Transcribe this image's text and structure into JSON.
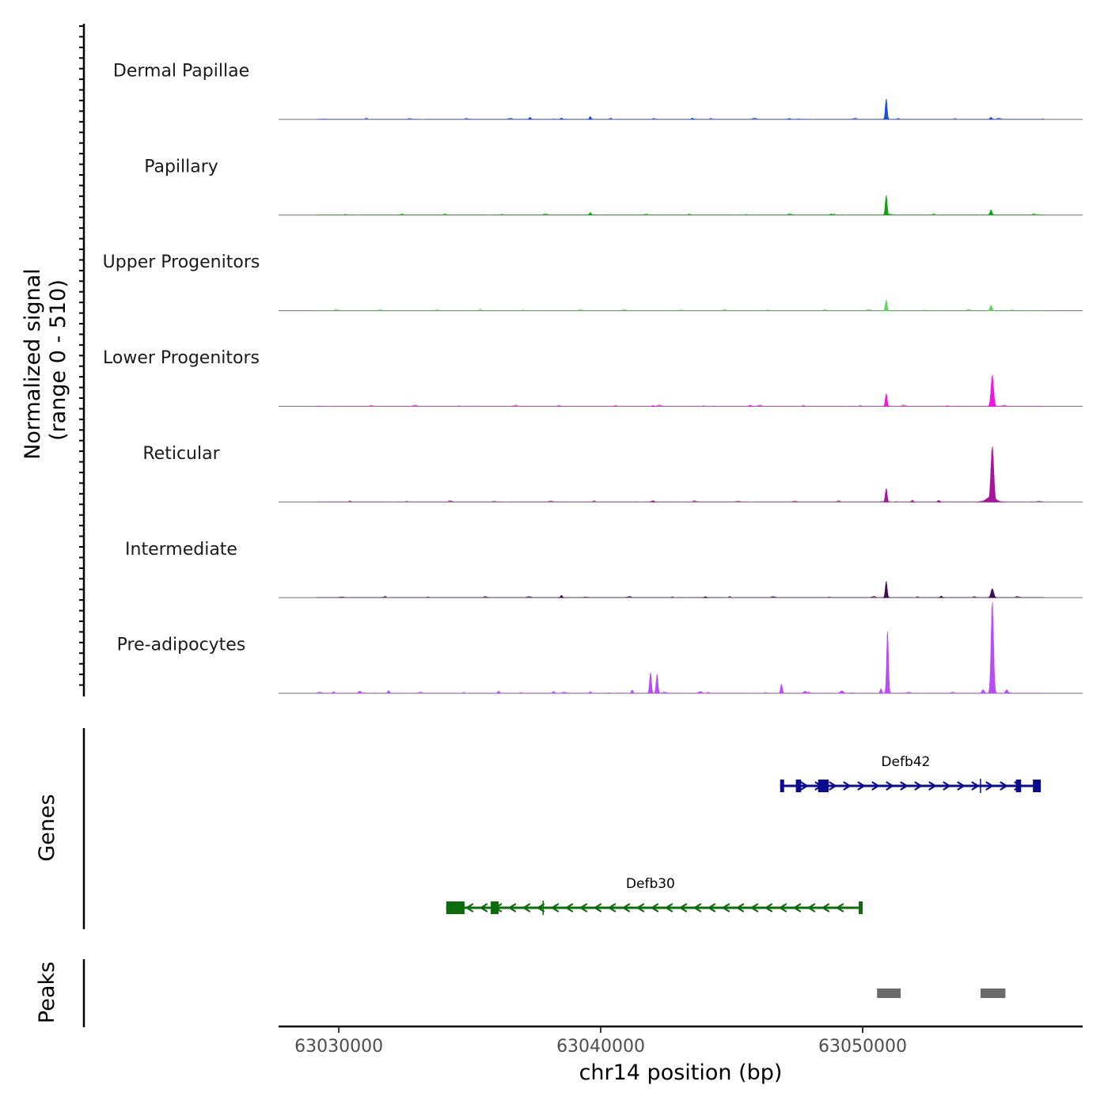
{
  "chart_data": {
    "type": "area",
    "chromosome": "chr14",
    "xlabel": "chr14 position (bp)",
    "xlim": [
      63027700,
      63058400
    ],
    "x_ticks": [
      63030000,
      63040000,
      63050000
    ],
    "x_tick_labels": [
      "63030000",
      "63040000",
      "63050000"
    ],
    "coverage_ylabel_line1": "Normalized signal",
    "coverage_ylabel_line2": "(range 0 - 510)",
    "ylim": [
      0,
      510
    ],
    "genes_ylabel": "Genes",
    "peaks_ylabel": "Peaks",
    "series": [
      {
        "name": "Dermal Papillae",
        "color": "#1d4fd6",
        "peaks": [
          {
            "pos": 63050900,
            "height": 115,
            "width": 140
          },
          {
            "pos": 63054900,
            "height": 12,
            "width": 160
          },
          {
            "pos": 63039600,
            "height": 16,
            "width": 70
          },
          {
            "pos": 63037300,
            "height": 12,
            "width": 70
          },
          {
            "pos": 63038500,
            "height": 8,
            "width": 60
          },
          {
            "pos": 63043500,
            "height": 7,
            "width": 70
          },
          {
            "pos": 63047200,
            "height": 6,
            "width": 70
          }
        ]
      },
      {
        "name": "Papillary",
        "color": "#12a112",
        "peaks": [
          {
            "pos": 63050900,
            "height": 110,
            "width": 140
          },
          {
            "pos": 63054900,
            "height": 28,
            "width": 170
          },
          {
            "pos": 63039600,
            "height": 14,
            "width": 80
          },
          {
            "pos": 63048800,
            "height": 6,
            "width": 90
          }
        ]
      },
      {
        "name": "Upper Progenitors",
        "color": "#5dd65d",
        "peaks": [
          {
            "pos": 63050900,
            "height": 58,
            "width": 150
          },
          {
            "pos": 63054900,
            "height": 30,
            "width": 170
          }
        ]
      },
      {
        "name": "Lower Progenitors",
        "color": "#f018e0",
        "peaks": [
          {
            "pos": 63050900,
            "height": 70,
            "width": 130
          },
          {
            "pos": 63054950,
            "height": 175,
            "width": 210
          },
          {
            "pos": 63045700,
            "height": 7,
            "width": 70
          },
          {
            "pos": 63042000,
            "height": 5,
            "width": 70
          }
        ]
      },
      {
        "name": "Reticular",
        "color": "#a6149e",
        "peaks": [
          {
            "pos": 63050900,
            "height": 75,
            "width": 140
          },
          {
            "pos": 63054950,
            "height": 310,
            "width": 230
          },
          {
            "pos": 63054900,
            "height": 30,
            "width": 700
          },
          {
            "pos": 63051900,
            "height": 10,
            "width": 120
          },
          {
            "pos": 63052900,
            "height": 9,
            "width": 120
          },
          {
            "pos": 63042000,
            "height": 8,
            "width": 80
          }
        ]
      },
      {
        "name": "Intermediate",
        "color": "#3d0f57",
        "peaks": [
          {
            "pos": 63050900,
            "height": 90,
            "width": 120
          },
          {
            "pos": 63054950,
            "height": 50,
            "width": 220
          },
          {
            "pos": 63038500,
            "height": 13,
            "width": 80
          },
          {
            "pos": 63053000,
            "height": 9,
            "width": 150
          },
          {
            "pos": 63044000,
            "height": 6,
            "width": 90
          }
        ]
      },
      {
        "name": "Pre-adipocytes",
        "color": "#b84cf5",
        "peaks": [
          {
            "pos": 63050950,
            "height": 345,
            "width": 130
          },
          {
            "pos": 63054950,
            "height": 510,
            "width": 200
          },
          {
            "pos": 63041900,
            "height": 115,
            "width": 110
          },
          {
            "pos": 63042150,
            "height": 105,
            "width": 110
          },
          {
            "pos": 63046900,
            "height": 50,
            "width": 140
          },
          {
            "pos": 63050700,
            "height": 25,
            "width": 120
          },
          {
            "pos": 63054600,
            "height": 20,
            "width": 200
          },
          {
            "pos": 63055500,
            "height": 20,
            "width": 200
          },
          {
            "pos": 63041200,
            "height": 18,
            "width": 140
          },
          {
            "pos": 63031900,
            "height": 15,
            "width": 90
          },
          {
            "pos": 63036100,
            "height": 12,
            "width": 160
          },
          {
            "pos": 63049200,
            "height": 14,
            "width": 260
          },
          {
            "pos": 63030800,
            "height": 12,
            "width": 220
          },
          {
            "pos": 63043800,
            "height": 10,
            "width": 260
          },
          {
            "pos": 63038200,
            "height": 10,
            "width": 180
          },
          {
            "pos": 63039600,
            "height": 9,
            "width": 120
          },
          {
            "pos": 63029800,
            "height": 8,
            "width": 180
          },
          {
            "pos": 63047800,
            "height": 12,
            "width": 200
          }
        ]
      }
    ],
    "genes": [
      {
        "name": "Defb42",
        "strand": "+",
        "color": "#0a0a8f",
        "start": 63046850,
        "end": 63056800,
        "exons": [
          [
            63046850,
            63047000
          ],
          [
            63047450,
            63047650
          ],
          [
            63048300,
            63048700
          ],
          [
            63055850,
            63056050
          ],
          [
            63056500,
            63056800
          ]
        ],
        "marks": [
          63054500
        ]
      },
      {
        "name": "Defb30",
        "strand": "-",
        "color": "#0c6b0c",
        "start": 63034100,
        "end": 63050000,
        "exons": [
          [
            63034100,
            63034800
          ],
          [
            63035800,
            63036100
          ],
          [
            63049850,
            63050000
          ]
        ],
        "marks": [
          63037800
        ]
      }
    ],
    "peaks_track": [
      [
        63050550,
        63051450
      ],
      [
        63054500,
        63055450
      ]
    ]
  }
}
